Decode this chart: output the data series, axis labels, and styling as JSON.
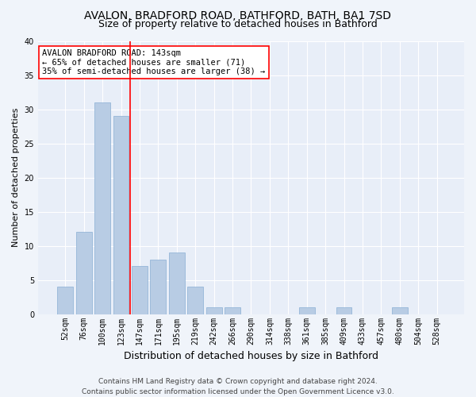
{
  "title1": "AVALON, BRADFORD ROAD, BATHFORD, BATH, BA1 7SD",
  "title2": "Size of property relative to detached houses in Bathford",
  "xlabel": "Distribution of detached houses by size in Bathford",
  "ylabel": "Number of detached properties",
  "categories": [
    "52sqm",
    "76sqm",
    "100sqm",
    "123sqm",
    "147sqm",
    "171sqm",
    "195sqm",
    "219sqm",
    "242sqm",
    "266sqm",
    "290sqm",
    "314sqm",
    "338sqm",
    "361sqm",
    "385sqm",
    "409sqm",
    "433sqm",
    "457sqm",
    "480sqm",
    "504sqm",
    "528sqm"
  ],
  "values": [
    4,
    12,
    31,
    29,
    7,
    8,
    9,
    4,
    1,
    1,
    0,
    0,
    0,
    1,
    0,
    1,
    0,
    0,
    1,
    0,
    0
  ],
  "bar_color": "#b8cce4",
  "bar_edge_color": "#8aafd4",
  "vline_color": "red",
  "vline_x": 3.5,
  "annotation_text": "AVALON BRADFORD ROAD: 143sqm\n← 65% of detached houses are smaller (71)\n35% of semi-detached houses are larger (38) →",
  "annotation_box_color": "white",
  "annotation_box_edge_color": "red",
  "ylim": [
    0,
    40
  ],
  "yticks": [
    0,
    5,
    10,
    15,
    20,
    25,
    30,
    35,
    40
  ],
  "footer": "Contains HM Land Registry data © Crown copyright and database right 2024.\nContains public sector information licensed under the Open Government Licence v3.0.",
  "bg_color": "#f0f4fa",
  "plot_bg_color": "#e8eef8",
  "grid_color": "#ffffff",
  "title1_fontsize": 10,
  "title2_fontsize": 9,
  "xlabel_fontsize": 9,
  "ylabel_fontsize": 8,
  "tick_fontsize": 7,
  "annotation_fontsize": 7.5,
  "footer_fontsize": 6.5
}
